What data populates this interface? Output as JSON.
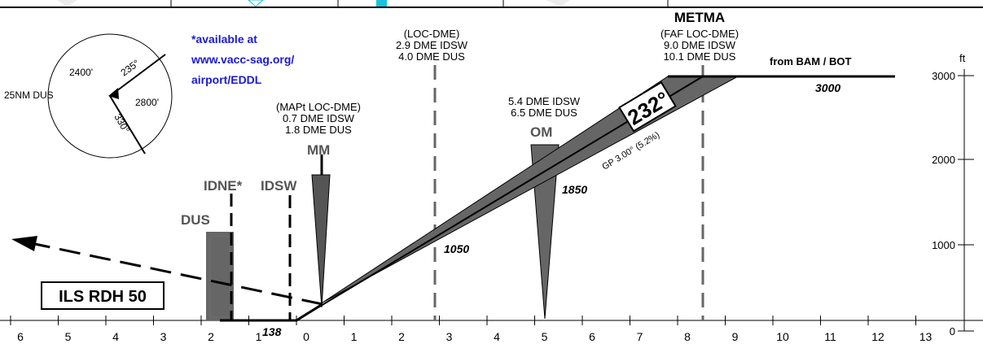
{
  "x_axis": {
    "ticks": [
      "6",
      "5",
      "4",
      "3",
      "2",
      "1",
      "0",
      "1",
      "2",
      "3",
      "4",
      "5",
      "6",
      "7",
      "8",
      "9",
      "10",
      "11",
      "12",
      "13"
    ]
  },
  "y_axis": {
    "unit": "ft",
    "ticks": [
      "0",
      "1000",
      "2000",
      "3000"
    ]
  },
  "wind_rose": {
    "label_left": "25NM DUS",
    "sector_upper": "2400'",
    "sector_right": "2800'",
    "bearing_upper": "235°",
    "bearing_lower": "330°"
  },
  "note": {
    "line1": "*available at",
    "line2": "www.vacc-sag.org/",
    "line3": "airport/EDDL",
    "color": "#1a1ad4"
  },
  "fixes": {
    "dus": "DUS",
    "idne": "IDNE*",
    "idsw": "IDSW",
    "mm": "MM",
    "om": "OM"
  },
  "mapt_block": {
    "line1": "(MAPt LOC-DME)",
    "line2": "0.7 DME IDSW",
    "line3": "1.8 DME DUS"
  },
  "loc_dme_block": {
    "line1": "(LOC-DME)",
    "line2": "2.9 DME IDSW",
    "line3": "4.0 DME DUS"
  },
  "om_block": {
    "line1": "5.4 DME IDSW",
    "line2": "6.5 DME DUS"
  },
  "metma_block": {
    "name": "METMA",
    "line1": "(FAF LOC-DME)",
    "line2": "9.0 DME IDSW",
    "line3": "10.1 DME DUS"
  },
  "from_label": "from BAM / BOT",
  "altitudes": {
    "a3000": "3000",
    "a1850": "1850",
    "a1050": "1050",
    "a138": "138"
  },
  "course": "232°",
  "glidepath": "GP 3.00° (5.2%)",
  "ils_rdh": "ILS RDH 50",
  "colors": {
    "fix_grey": "#555555",
    "fill_grey": "#666666",
    "dash_grey": "#666666"
  }
}
